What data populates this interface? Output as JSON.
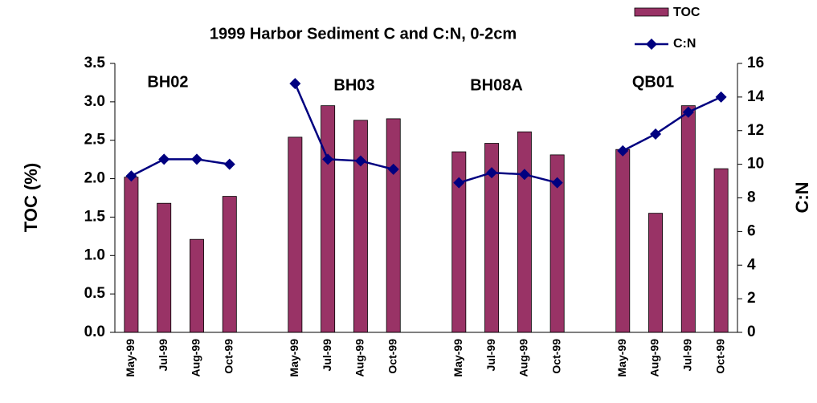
{
  "chart_data": {
    "type": "bar_line",
    "title": "1999 Harbor Sediment C and C:N, 0-2cm",
    "ylabel": "TOC (%)",
    "y2label": "C:N",
    "categories": [
      "May-99",
      "Jul-99",
      "Aug-99",
      "Oct-99",
      null,
      "May-99",
      "Jul-99",
      "Aug-99",
      "Oct-99",
      null,
      "May-99",
      "Jul-99",
      "Aug-99",
      "Oct-99",
      null,
      "May-99",
      "Aug-99",
      "Jul-99",
      "Oct-99"
    ],
    "series": [
      {
        "name": "TOC",
        "type": "bar",
        "color": "#993366",
        "values": [
          2.02,
          1.68,
          1.21,
          1.77,
          null,
          2.54,
          2.95,
          2.76,
          2.78,
          null,
          2.35,
          2.46,
          2.61,
          2.31,
          null,
          2.38,
          1.55,
          2.95,
          2.13
        ]
      },
      {
        "name": "C:N",
        "type": "line",
        "axis": "y2",
        "color": "#000080",
        "values": [
          9.3,
          10.3,
          10.3,
          10.0,
          null,
          14.8,
          10.3,
          10.2,
          9.7,
          null,
          8.9,
          9.5,
          9.4,
          8.9,
          null,
          10.8,
          11.8,
          13.1,
          14.0
        ]
      }
    ],
    "annotations": [
      "BH02",
      "BH03",
      "BH08A",
      "QB01"
    ],
    "ylim": [
      0,
      3.5
    ],
    "yticks": [
      {
        "value": 0,
        "label": "0.0"
      },
      0.5,
      {
        "value": 1,
        "label": "1.0"
      },
      1.5,
      {
        "value": 2,
        "label": "2.0"
      },
      2.5,
      {
        "value": 3,
        "label": "3.0"
      },
      3.5
    ],
    "y2lim": [
      0,
      16
    ],
    "y2ticks": [
      0,
      2,
      4,
      6,
      8,
      10,
      12,
      14,
      16
    ],
    "grid": false,
    "legend": "top-right"
  }
}
